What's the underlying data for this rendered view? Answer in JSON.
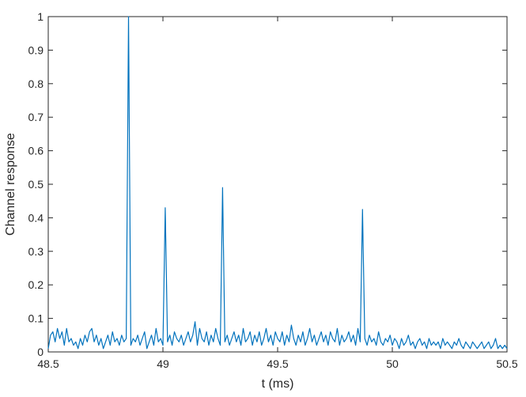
{
  "chart_data": {
    "type": "line",
    "xlabel": "t (ms)",
    "ylabel": "Channel response",
    "xlim": [
      48.5,
      50.5
    ],
    "xticks": [
      48.5,
      49,
      49.5,
      50,
      50.5
    ],
    "ylim": [
      0,
      1
    ],
    "yticks": [
      0,
      0.1,
      0.2,
      0.3,
      0.4,
      0.5,
      0.6,
      0.7,
      0.8,
      0.9,
      1
    ],
    "grid": false,
    "x": [
      48.5,
      48.51,
      48.52,
      48.53,
      48.54,
      48.55,
      48.56,
      48.57,
      48.58,
      48.59,
      48.6,
      48.61,
      48.62,
      48.63,
      48.64,
      48.65,
      48.66,
      48.67,
      48.68,
      48.69,
      48.7,
      48.71,
      48.72,
      48.73,
      48.74,
      48.75,
      48.76,
      48.77,
      48.78,
      48.79,
      48.8,
      48.81,
      48.82,
      48.83,
      48.84,
      48.85,
      48.86,
      48.87,
      48.88,
      48.89,
      48.9,
      48.91,
      48.92,
      48.93,
      48.94,
      48.95,
      48.96,
      48.97,
      48.98,
      48.99,
      49,
      49.01,
      49.02,
      49.03,
      49.04,
      49.05,
      49.06,
      49.07,
      49.08,
      49.09,
      49.1,
      49.11,
      49.12,
      49.13,
      49.14,
      49.15,
      49.16,
      49.17,
      49.18,
      49.19,
      49.2,
      49.21,
      49.22,
      49.23,
      49.24,
      49.25,
      49.26,
      49.27,
      49.28,
      49.29,
      49.3,
      49.31,
      49.32,
      49.33,
      49.34,
      49.35,
      49.36,
      49.37,
      49.38,
      49.39,
      49.4,
      49.41,
      49.42,
      49.43,
      49.44,
      49.45,
      49.46,
      49.47,
      49.48,
      49.49,
      49.5,
      49.51,
      49.52,
      49.53,
      49.54,
      49.55,
      49.56,
      49.57,
      49.58,
      49.59,
      49.6,
      49.61,
      49.62,
      49.63,
      49.64,
      49.65,
      49.66,
      49.67,
      49.68,
      49.69,
      49.7,
      49.71,
      49.72,
      49.73,
      49.74,
      49.75,
      49.76,
      49.77,
      49.78,
      49.79,
      49.8,
      49.81,
      49.82,
      49.83,
      49.84,
      49.85,
      49.86,
      49.87,
      49.88,
      49.89,
      49.9,
      49.91,
      49.92,
      49.93,
      49.94,
      49.95,
      49.96,
      49.97,
      49.98,
      49.99,
      50,
      50.01,
      50.02,
      50.03,
      50.04,
      50.05,
      50.06,
      50.07,
      50.08,
      50.09,
      50.1,
      50.11,
      50.12,
      50.13,
      50.14,
      50.15,
      50.16,
      50.17,
      50.18,
      50.19,
      50.2,
      50.21,
      50.22,
      50.23,
      50.24,
      50.25,
      50.26,
      50.27,
      50.28,
      50.29,
      50.3,
      50.31,
      50.32,
      50.33,
      50.34,
      50.35,
      50.36,
      50.37,
      50.38,
      50.39,
      50.4,
      50.41,
      50.42,
      50.43,
      50.44,
      50.45,
      50.46,
      50.47,
      50.48,
      50.49,
      50.5
    ],
    "series": [
      {
        "color": "#0072BD",
        "values": [
          0.01,
          0.05,
          0.06,
          0.03,
          0.07,
          0.04,
          0.06,
          0.02,
          0.07,
          0.03,
          0.04,
          0.02,
          0.03,
          0.01,
          0.04,
          0.02,
          0.05,
          0.03,
          0.06,
          0.07,
          0.03,
          0.05,
          0.02,
          0.04,
          0.01,
          0.03,
          0.05,
          0.02,
          0.06,
          0.03,
          0.04,
          0.02,
          0.05,
          0.03,
          0.04,
          1,
          0.02,
          0.04,
          0.03,
          0.05,
          0.02,
          0.04,
          0.06,
          0.01,
          0.03,
          0.05,
          0.02,
          0.07,
          0.03,
          0.04,
          0.02,
          0.43,
          0.03,
          0.05,
          0.02,
          0.06,
          0.04,
          0.03,
          0.05,
          0.02,
          0.04,
          0.06,
          0.03,
          0.05,
          0.09,
          0.02,
          0.07,
          0.04,
          0.03,
          0.06,
          0.02,
          0.05,
          0.03,
          0.07,
          0.04,
          0.02,
          0.49,
          0.03,
          0.05,
          0.02,
          0.04,
          0.06,
          0.03,
          0.05,
          0.02,
          0.07,
          0.03,
          0.04,
          0.06,
          0.02,
          0.05,
          0.03,
          0.06,
          0.02,
          0.04,
          0.07,
          0.03,
          0.05,
          0.02,
          0.06,
          0.04,
          0.03,
          0.06,
          0.02,
          0.05,
          0.03,
          0.08,
          0.04,
          0.02,
          0.05,
          0.03,
          0.06,
          0.02,
          0.04,
          0.07,
          0.03,
          0.05,
          0.02,
          0.04,
          0.06,
          0.03,
          0.05,
          0.02,
          0.06,
          0.04,
          0.03,
          0.07,
          0.02,
          0.05,
          0.03,
          0.04,
          0.06,
          0.03,
          0.05,
          0.02,
          0.07,
          0.03,
          0.425,
          0.04,
          0.02,
          0.05,
          0.03,
          0.04,
          0.02,
          0.06,
          0.03,
          0.02,
          0.04,
          0.03,
          0.05,
          0.02,
          0.04,
          0.03,
          0.01,
          0.04,
          0.02,
          0.03,
          0.05,
          0.02,
          0.03,
          0.01,
          0.03,
          0.04,
          0.02,
          0.03,
          0.01,
          0.04,
          0.02,
          0.03,
          0.02,
          0.03,
          0.01,
          0.04,
          0.02,
          0.03,
          0.02,
          0.01,
          0.03,
          0.02,
          0.04,
          0.02,
          0.01,
          0.03,
          0.02,
          0.01,
          0.03,
          0.02,
          0.01,
          0.02,
          0.03,
          0.01,
          0.02,
          0.03,
          0.01,
          0.02,
          0.04,
          0.01,
          0.02,
          0.01,
          0.02,
          0.01
        ]
      }
    ]
  }
}
